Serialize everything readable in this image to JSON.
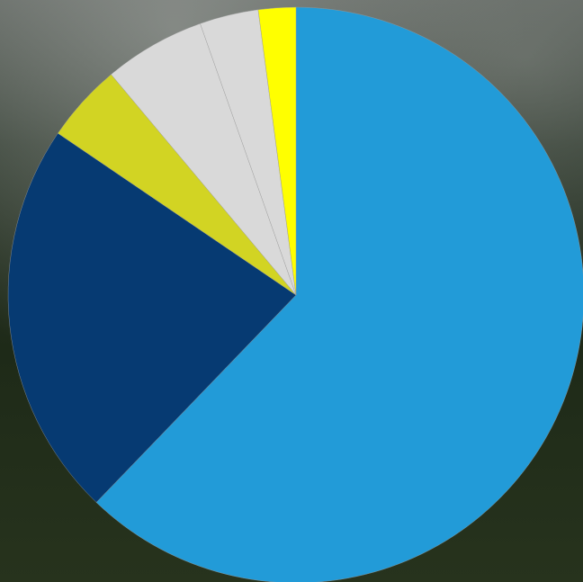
{
  "chart_data": {
    "type": "pie",
    "values": [
      62.2,
      22.3,
      4.4,
      5.7,
      3.3,
      2.1
    ],
    "colors": [
      "#229bd8",
      "#063a72",
      "#d2d423",
      "#d9d9d9",
      "#d9d9d9",
      "#ffff00"
    ]
  }
}
